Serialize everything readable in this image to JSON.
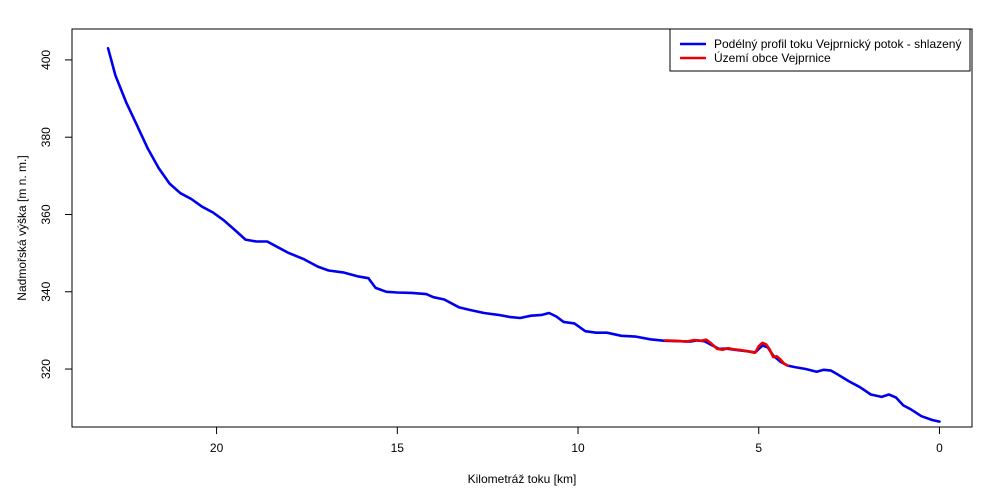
{
  "chart_data": {
    "type": "line",
    "title": "",
    "xlabel": "Kilometráž toku [km]",
    "ylabel": "Nadmořská výška [m n. m.]",
    "xlim": [
      24,
      -0.9
    ],
    "ylim": [
      305,
      408
    ],
    "xticks": [
      20,
      15,
      10,
      5,
      0
    ],
    "yticks": [
      320,
      340,
      360,
      380,
      400
    ],
    "grid": false,
    "legend_position": "top-right",
    "series": [
      {
        "name": "Podélný profil toku Vejprnický potok - shlazený",
        "color": "#0000ee",
        "x": [
          23.0,
          22.8,
          22.5,
          22.2,
          21.9,
          21.6,
          21.3,
          21.0,
          20.7,
          20.4,
          20.1,
          19.8,
          19.5,
          19.2,
          18.9,
          18.6,
          18.3,
          18.0,
          17.6,
          17.2,
          16.9,
          16.5,
          16.1,
          15.8,
          15.6,
          15.3,
          15.0,
          14.6,
          14.2,
          14.0,
          13.7,
          13.3,
          13.0,
          12.6,
          12.2,
          11.9,
          11.6,
          11.3,
          11.0,
          10.8,
          10.6,
          10.4,
          10.1,
          9.8,
          9.5,
          9.2,
          8.8,
          8.4,
          8.0,
          7.6,
          7.2,
          6.9,
          6.7,
          6.5,
          6.3,
          6.1,
          5.9,
          5.6,
          5.3,
          5.1,
          4.9,
          4.75,
          4.6,
          4.4,
          4.2,
          4.0,
          3.7,
          3.4,
          3.2,
          3.0,
          2.8,
          2.5,
          2.2,
          1.9,
          1.6,
          1.4,
          1.2,
          1.0,
          0.8,
          0.5,
          0.2,
          0.0
        ],
        "y": [
          403,
          396,
          389,
          383,
          377,
          372,
          368,
          365.5,
          364,
          362,
          360.5,
          358.5,
          356,
          353.5,
          353,
          353,
          351.5,
          350,
          348.5,
          346.5,
          345.5,
          345,
          344,
          343.5,
          341,
          340,
          339.8,
          339.7,
          339.4,
          338.6,
          338,
          336,
          335.3,
          334.5,
          334,
          333.5,
          333.2,
          333.8,
          334,
          334.5,
          333.6,
          332.2,
          331.8,
          329.8,
          329.4,
          329.4,
          328.6,
          328.4,
          327.7,
          327.3,
          327.2,
          327.1,
          327.4,
          327.2,
          326.2,
          325.2,
          325.3,
          324.9,
          324.6,
          324.3,
          326.1,
          325.6,
          323.5,
          321.9,
          320.9,
          320.5,
          320,
          319.3,
          319.8,
          319.6,
          318.5,
          316.8,
          315.3,
          313.4,
          312.8,
          313.4,
          312.6,
          310.6,
          309.6,
          307.8,
          306.8,
          306.4
        ]
      },
      {
        "name": "Území obce Vejprnice",
        "color": "#ee0000",
        "x": [
          7.6,
          7.3,
          7.0,
          6.8,
          6.6,
          6.45,
          6.3,
          6.15,
          6.0,
          5.85,
          5.7,
          5.5,
          5.3,
          5.1,
          5.0,
          4.9,
          4.8,
          4.7,
          4.6,
          4.5,
          4.4,
          4.3,
          4.2
        ],
        "y": [
          327.4,
          327.3,
          327.1,
          327.5,
          327.3,
          327.6,
          326.5,
          325.2,
          325.0,
          325.4,
          325.1,
          324.9,
          324.6,
          324.2,
          325.9,
          326.8,
          326.4,
          325.1,
          323.1,
          323.3,
          322.5,
          321.4,
          320.9
        ]
      }
    ]
  }
}
